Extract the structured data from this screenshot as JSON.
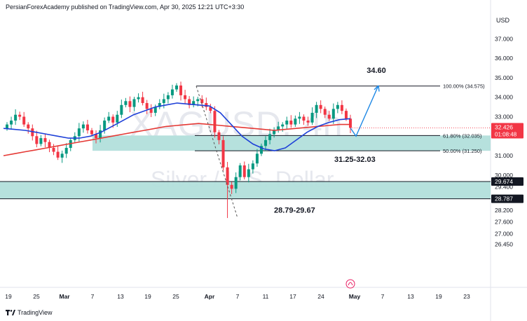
{
  "header": {
    "text": "PersianForexAcademy published on TradingView.com, Apr 30, 2025 12:21 UTC+3:30"
  },
  "watermark": {
    "symbol": "XAGUSD, 4h",
    "description": "Silver / U.S. Dollar"
  },
  "footer": {
    "brand": "TradingView"
  },
  "chart_data": {
    "type": "candlestick",
    "symbol": "XAGUSD",
    "timeframe": "4h",
    "currency": "USD",
    "ylim": [
      26.0,
      37.8
    ],
    "y_ticks": [
      {
        "v": 37.0,
        "l": "37.000"
      },
      {
        "v": 36.0,
        "l": "36.000"
      },
      {
        "v": 35.0,
        "l": "35.000"
      },
      {
        "v": 34.0,
        "l": "34.000"
      },
      {
        "v": 33.0,
        "l": "33.000"
      },
      {
        "v": 31.0,
        "l": "31.000"
      },
      {
        "v": 30.0,
        "l": "30.000"
      },
      {
        "v": 29.4,
        "l": "29.400"
      },
      {
        "v": 28.2,
        "l": "28.200"
      },
      {
        "v": 27.6,
        "l": "27.600"
      },
      {
        "v": 27.0,
        "l": "27.000"
      },
      {
        "v": 26.45,
        "l": "26.450"
      }
    ],
    "x_ticks": [
      "19",
      "25",
      "Mar",
      "7",
      "13",
      "19",
      "25",
      "Apr",
      "7",
      "11",
      "17",
      "24",
      "May",
      "7",
      "13",
      "19",
      "23"
    ],
    "bold_x_ticks": [
      "Mar",
      "Apr",
      "May"
    ],
    "price_labels": [
      {
        "value": 32.426,
        "text": "32.426",
        "sub": "01:08:48",
        "color": "#f23645"
      },
      {
        "value": 29.674,
        "text": "29.674",
        "color": "#131722"
      },
      {
        "value": 28.787,
        "text": "28.787",
        "color": "#131722"
      }
    ],
    "fib_levels": [
      {
        "value": 34.575,
        "label": "100.00% (34.575)"
      },
      {
        "value": 32.035,
        "label": "61.80% (32.035)"
      },
      {
        "value": 31.25,
        "label": "50.00% (31.250)"
      }
    ],
    "zones": [
      {
        "from": 31.25,
        "to": 32.035,
        "label": "31.25-32.03",
        "color": "#b2dfdb"
      },
      {
        "from": 28.787,
        "to": 29.674,
        "label": "28.79-29.67",
        "color": "#b2dfdb"
      }
    ],
    "target": {
      "value": 34.6,
      "label": "34.60"
    },
    "swing_low": 27.8,
    "candles_close": [
      32.6,
      32.8,
      33.1,
      33.0,
      32.6,
      32.4,
      32.0,
      31.6,
      31.9,
      31.7,
      31.4,
      31.2,
      30.9,
      31.1,
      31.4,
      31.8,
      32.0,
      32.4,
      32.6,
      32.3,
      32.1,
      31.9,
      32.3,
      32.8,
      33.0,
      32.7,
      33.1,
      33.6,
      33.8,
      33.5,
      33.9,
      34.0,
      33.7,
      33.4,
      33.2,
      33.5,
      33.7,
      33.9,
      34.1,
      34.4,
      34.6,
      34.1,
      33.9,
      33.6,
      33.8,
      33.9,
      33.7,
      33.5,
      33.3,
      32.2,
      31.8,
      30.4,
      29.5,
      29.3,
      29.9,
      30.5,
      29.9,
      30.3,
      30.6,
      31.1,
      31.5,
      31.8,
      32.1,
      32.3,
      32.5,
      32.6,
      32.8,
      32.6,
      32.9,
      33.0,
      32.8,
      32.7,
      33.2,
      33.6,
      33.4,
      33.1,
      32.9,
      33.4,
      33.6,
      33.3,
      32.9,
      32.426
    ],
    "ma_red": [
      31.0,
      31.1,
      31.2,
      31.3,
      31.4,
      31.5,
      31.6,
      31.7,
      31.8,
      31.9,
      32.0,
      32.1,
      32.2,
      32.3,
      32.4,
      32.5,
      32.55,
      32.6,
      32.65,
      32.6,
      32.55,
      32.5,
      32.45,
      32.4,
      32.35,
      32.3,
      32.35,
      32.4,
      32.45,
      32.5,
      32.55,
      32.6,
      32.6
    ],
    "ma_blue": [
      32.4,
      32.35,
      32.3,
      32.2,
      32.1,
      32.0,
      31.9,
      31.9,
      32.0,
      32.2,
      32.5,
      32.8,
      33.1,
      33.3,
      33.5,
      33.6,
      33.7,
      33.65,
      33.6,
      33.55,
      33.2,
      32.6,
      32.0,
      31.6,
      31.35,
      31.25,
      31.4,
      31.8,
      32.2,
      32.5,
      32.7,
      32.85,
      32.9
    ],
    "projection": [
      32.426,
      32.0,
      34.6
    ]
  }
}
